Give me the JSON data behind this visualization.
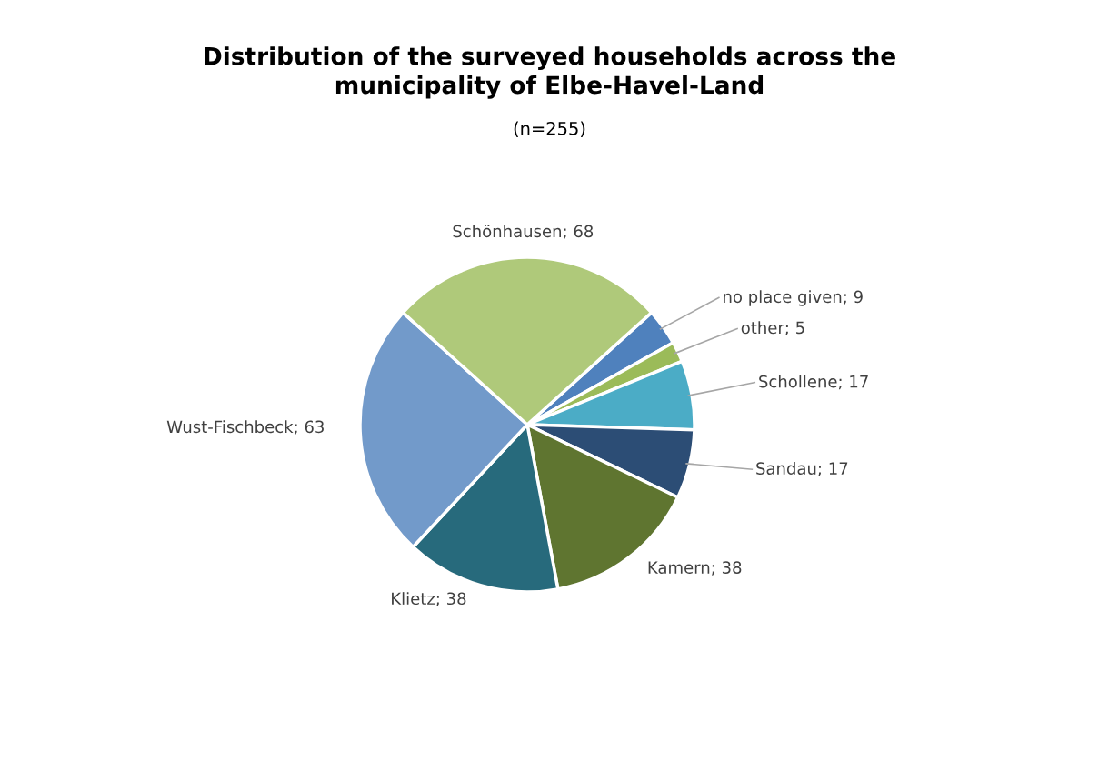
{
  "chart_data": {
    "type": "pie",
    "title": "Distribution of the surveyed households across the\nmunicipality of Elbe-Havel-Land",
    "subtitle": "(n=255)",
    "categories": [
      "no place given",
      "other",
      "Schollene",
      "Sandau",
      "Kamern",
      "Klietz",
      "Wust-Fischbeck",
      "Schönhausen"
    ],
    "values": [
      9,
      5,
      17,
      17,
      38,
      38,
      63,
      68
    ],
    "colors": [
      "#4f81bd",
      "#9bbb59",
      "#4bacc6",
      "#2c4d75",
      "#5f7530",
      "#276a7c",
      "#729aca",
      "#afc97a"
    ],
    "value_labels": [
      "; 9",
      "; 5",
      "; 17",
      "; 17",
      "; 38",
      "; 38",
      "; 63",
      "; 68"
    ]
  }
}
